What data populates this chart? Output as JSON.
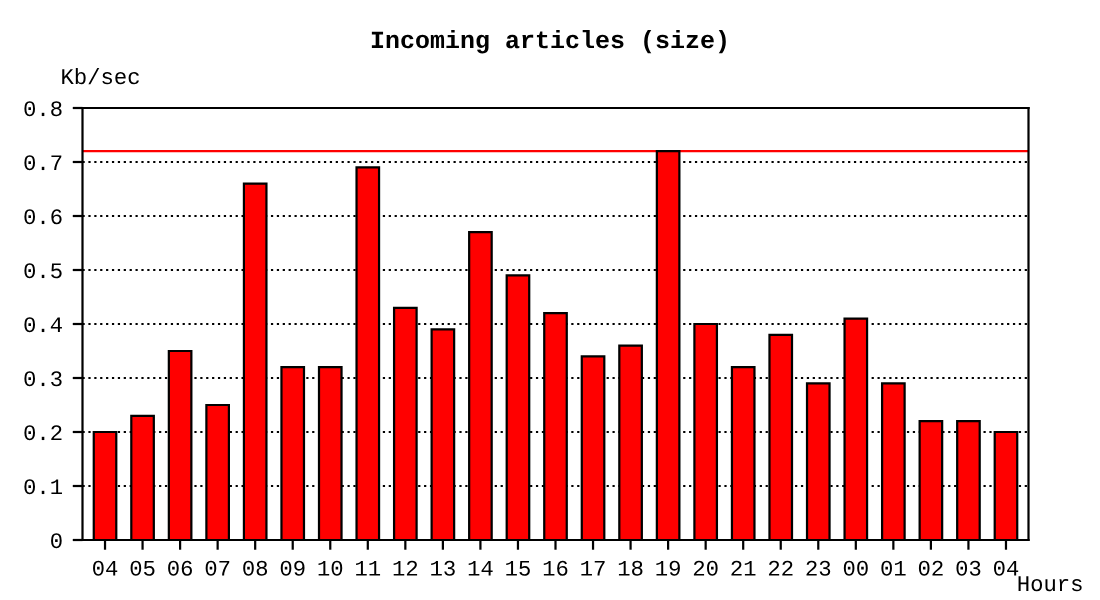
{
  "chart_data": {
    "type": "bar",
    "title": "Incoming articles (size)",
    "ylabel": "Kb/sec",
    "xlabel": "Hours",
    "categories": [
      "04",
      "05",
      "06",
      "07",
      "08",
      "09",
      "10",
      "11",
      "12",
      "13",
      "14",
      "15",
      "16",
      "17",
      "18",
      "19",
      "20",
      "21",
      "22",
      "23",
      "00",
      "01",
      "02",
      "03",
      "04"
    ],
    "values": [
      0.2,
      0.23,
      0.35,
      0.25,
      0.66,
      0.32,
      0.32,
      0.69,
      0.43,
      0.39,
      0.57,
      0.49,
      0.42,
      0.34,
      0.36,
      0.72,
      0.4,
      0.32,
      0.38,
      0.29,
      0.41,
      0.29,
      0.22,
      0.22,
      0.2
    ],
    "color": "#ff0000",
    "ylim": [
      0,
      0.8
    ],
    "yticks": [
      0,
      0.1,
      0.2,
      0.3,
      0.4,
      0.5,
      0.6,
      0.7,
      0.8
    ],
    "ref_lines": [
      {
        "axis": "y",
        "value": 0.72,
        "color": "#ff0000",
        "line_style": "solid"
      }
    ],
    "grid": "y",
    "line_style": "dotted"
  }
}
